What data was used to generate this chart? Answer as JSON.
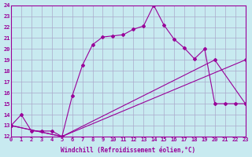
{
  "xlabel": "Windchill (Refroidissement éolien,°C)",
  "xlim": [
    0,
    23
  ],
  "ylim": [
    12,
    24
  ],
  "xticks": [
    0,
    1,
    2,
    3,
    4,
    5,
    6,
    7,
    8,
    9,
    10,
    11,
    12,
    13,
    14,
    15,
    16,
    17,
    18,
    19,
    20,
    21,
    22,
    23
  ],
  "yticks": [
    12,
    13,
    14,
    15,
    16,
    17,
    18,
    19,
    20,
    21,
    22,
    23,
    24
  ],
  "color": "#990099",
  "background": "#c8eaf0",
  "grid_color": "#aaaacc",
  "line1_x": [
    0,
    1,
    2,
    3,
    4,
    5,
    6,
    7,
    8,
    9,
    10,
    11,
    12,
    13,
    14,
    15,
    16,
    17,
    18,
    19,
    20,
    21,
    22,
    23
  ],
  "line1_y": [
    13,
    14,
    12.5,
    12.5,
    12.5,
    12,
    15.7,
    18.5,
    20.4,
    21.1,
    21.2,
    21.3,
    21.8,
    22.1,
    24.0,
    22.2,
    20.9,
    20.1,
    19.1,
    20.0,
    15.0,
    15.0,
    15.0,
    15.0
  ],
  "line2_x": [
    0,
    5,
    23
  ],
  "line2_y": [
    13,
    12,
    19.0
  ],
  "line3_x": [
    0,
    5,
    20,
    23
  ],
  "line3_y": [
    13,
    12,
    19.0,
    15.0
  ]
}
